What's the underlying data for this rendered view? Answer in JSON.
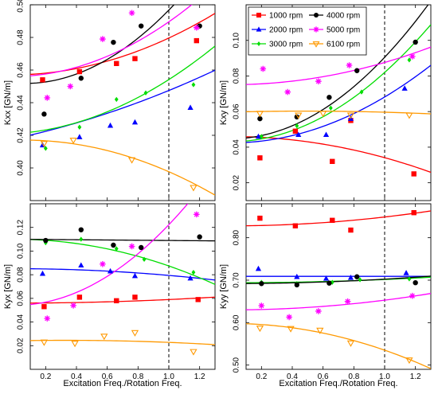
{
  "figure": {
    "xlabel": "Excitation Freq./Rotation Freq.",
    "legend": {
      "placement": "top-left of Kxy panel",
      "entries": [
        {
          "label": "1000 rpm",
          "color": "#ff0000",
          "marker": "square"
        },
        {
          "label": "4000 rpm",
          "color": "#000000",
          "marker": "circle"
        },
        {
          "label": "2000 rpm",
          "color": "#0000ff",
          "marker": "triangle-up"
        },
        {
          "label": "5000 rpm",
          "color": "#ff00ff",
          "marker": "asterisk"
        },
        {
          "label": "3000 rpm",
          "color": "#00dd00",
          "marker": "diamond"
        },
        {
          "label": "6100 rpm",
          "color": "#ff9900",
          "marker": "triangle-down-open"
        }
      ]
    }
  },
  "chart_data": [
    {
      "type": "scatter",
      "panel": "top-left",
      "title": "",
      "xlabel": "",
      "ylabel": "Kxx [GN/m]",
      "xlim": [
        0.1,
        1.3
      ],
      "ylim": [
        0.38,
        0.5
      ],
      "xticks": [
        0.2,
        0.4,
        0.6,
        0.8,
        1.0,
        1.2
      ],
      "yticks": [
        0.4,
        0.42,
        0.44,
        0.46,
        0.48,
        0.5
      ],
      "xtick_labels": [
        "",
        "",
        "",
        "",
        "",
        ""
      ],
      "ytick_labels": [
        "0.40",
        "0.42",
        "0.44",
        "0.46",
        "0.48",
        "0.50"
      ],
      "vline": 1.0,
      "grid": false,
      "series": [
        {
          "name": "1000 rpm",
          "x": [
            0.18,
            0.42,
            0.66,
            0.78,
            1.18
          ],
          "y": [
            0.454,
            0.459,
            0.464,
            0.467,
            0.478
          ],
          "fit": [
            0.457,
            0.00133,
            0.0213
          ]
        },
        {
          "name": "2000 rpm",
          "x": [
            0.18,
            0.42,
            0.62,
            0.78,
            1.14
          ],
          "y": [
            0.414,
            0.419,
            0.426,
            0.428,
            0.437
          ],
          "fit": [
            0.418,
            0.0203,
            0.00917
          ]
        },
        {
          "name": "3000 rpm",
          "x": [
            0.2,
            0.42,
            0.66,
            0.85,
            1.16
          ],
          "y": [
            0.412,
            0.425,
            0.442,
            0.446,
            0.451
          ],
          "fit": [
            0.421,
            0.00607,
            0.0271
          ]
        },
        {
          "name": "4000 rpm",
          "x": [
            0.19,
            0.43,
            0.64,
            0.82,
            1.2
          ],
          "y": [
            0.433,
            0.455,
            0.477,
            0.487,
            0.487
          ],
          "fit": [
            0.452,
            -0.00667,
            0.0514
          ]
        },
        {
          "name": "5000 rpm",
          "x": [
            0.21,
            0.36,
            0.57,
            0.76,
            1.18
          ],
          "y": [
            0.443,
            0.45,
            0.479,
            0.495,
            0.486
          ],
          "fit": [
            0.456,
            0.00146,
            0.0321
          ]
        },
        {
          "name": "6100 rpm",
          "x": [
            0.19,
            0.38,
            0.76,
            1.16
          ],
          "y": [
            0.415,
            0.417,
            0.405,
            0.388
          ],
          "fit": [
            0.417,
            0.00258,
            -0.0219
          ]
        }
      ]
    },
    {
      "type": "scatter",
      "panel": "top-right",
      "title": "",
      "xlabel": "",
      "ylabel": "Kxy [GN/m]",
      "xlim": [
        0.1,
        1.3
      ],
      "ylim": [
        0.01,
        0.12
      ],
      "xticks": [
        0.2,
        0.4,
        0.6,
        0.8,
        1.0,
        1.2
      ],
      "yticks": [
        0.02,
        0.04,
        0.06,
        0.08,
        0.1
      ],
      "xtick_labels": [
        "",
        "",
        "",
        "",
        "",
        ""
      ],
      "ytick_labels": [
        "0.02",
        "0.04",
        "0.06",
        "0.08",
        "0.10"
      ],
      "vline": 1.0,
      "grid": false,
      "series": [
        {
          "name": "1000 rpm",
          "x": [
            0.19,
            0.42,
            0.66,
            0.78,
            1.19
          ],
          "y": [
            0.034,
            0.049,
            0.032,
            0.055,
            0.025
          ],
          "fit": [
            0.046,
            0.0,
            -0.0119
          ]
        },
        {
          "name": "2000 rpm",
          "x": [
            0.18,
            0.44,
            0.62,
            0.78,
            1.13
          ],
          "y": [
            0.046,
            0.047,
            0.047,
            0.056,
            0.073
          ],
          "fit": [
            0.0424,
            0.0,
            0.0258
          ]
        },
        {
          "name": "3000 rpm",
          "x": [
            0.2,
            0.43,
            0.65,
            0.85,
            1.16
          ],
          "y": [
            0.046,
            0.052,
            0.062,
            0.071,
            0.089
          ],
          "fit": [
            0.0431,
            0.0,
            0.0389
          ]
        },
        {
          "name": "4000 rpm",
          "x": [
            0.19,
            0.43,
            0.64,
            0.82,
            1.2
          ],
          "y": [
            0.056,
            0.057,
            0.068,
            0.083,
            0.099
          ],
          "fit": [
            0.0447,
            0.0,
            0.0458
          ]
        },
        {
          "name": "5000 rpm",
          "x": [
            0.21,
            0.37,
            0.57,
            0.77,
            1.18
          ],
          "y": [
            0.084,
            0.071,
            0.077,
            0.086,
            0.091
          ],
          "fit": [
            0.0751,
            0.0,
            0.0125
          ]
        },
        {
          "name": "6100 rpm",
          "x": [
            0.19,
            0.44,
            0.6,
            0.78,
            1.16
          ],
          "y": [
            0.059,
            0.058,
            0.059,
            0.058,
            0.058
          ],
          "fit": [
            0.0597,
            0.00229,
            -0.00234
          ]
        }
      ]
    },
    {
      "type": "scatter",
      "panel": "bottom-left",
      "title": "",
      "xlabel": "Excitation Freq./Rotation Freq.",
      "ylabel": "Kyx [GN/m]",
      "xlim": [
        0.1,
        1.3
      ],
      "ylim": [
        0.0,
        0.14
      ],
      "xticks": [
        0.2,
        0.4,
        0.6,
        0.8,
        1.0,
        1.2
      ],
      "yticks": [
        0.02,
        0.04,
        0.06,
        0.08,
        0.1,
        0.12
      ],
      "xtick_labels": [
        "0.2",
        "0.4",
        "0.6",
        "0.8",
        "1.0",
        "1.2"
      ],
      "ytick_labels": [
        "0.02",
        "0.04",
        "0.06",
        "0.08",
        "0.10",
        "0.12"
      ],
      "vline": 1.0,
      "grid": false,
      "series": [
        {
          "name": "1000 rpm",
          "x": [
            0.19,
            0.42,
            0.66,
            0.78,
            1.19
          ],
          "y": [
            0.053,
            0.061,
            0.058,
            0.061,
            0.059
          ],
          "fit": [
            0.056,
            0.0,
            0.003
          ]
        },
        {
          "name": "2000 rpm",
          "x": [
            0.18,
            0.43,
            0.62,
            0.78,
            1.14
          ],
          "y": [
            0.081,
            0.088,
            0.083,
            0.079,
            0.077
          ],
          "fit": [
            0.0851,
            0.0,
            -0.00568
          ]
        },
        {
          "name": "3000 rpm",
          "x": [
            0.2,
            0.43,
            0.66,
            0.84,
            1.16
          ],
          "y": [
            0.107,
            0.11,
            0.102,
            0.093,
            0.082
          ],
          "fit": [
            0.11,
            0.0,
            -0.0226
          ]
        },
        {
          "name": "4000 rpm",
          "x": [
            0.2,
            0.43,
            0.64,
            0.82,
            1.2
          ],
          "y": [
            0.109,
            0.118,
            0.105,
            0.103,
            0.112
          ],
          "fit": [
            0.11,
            -0.00105,
            0.0
          ]
        },
        {
          "name": "5000 rpm",
          "x": [
            0.21,
            0.38,
            0.57,
            0.76,
            1.18
          ],
          "y": [
            0.043,
            0.054,
            0.089,
            0.104,
            0.131
          ],
          "fit": [
            0.0541,
            0.0,
            0.0682
          ]
        },
        {
          "name": "6100 rpm",
          "x": [
            0.19,
            0.39,
            0.58,
            0.78,
            1.16
          ],
          "y": [
            0.023,
            0.022,
            0.028,
            0.031,
            0.015
          ],
          "fit": [
            0.0241,
            0.0026,
            -0.00391
          ]
        }
      ]
    },
    {
      "type": "scatter",
      "panel": "bottom-right",
      "title": "",
      "xlabel": "Excitation Freq./Rotation Freq.",
      "ylabel": "Kyy [GN/m]",
      "xlim": [
        0.1,
        1.3
      ],
      "ylim": [
        0.49,
        0.88
      ],
      "xticks": [
        0.2,
        0.4,
        0.6,
        0.8,
        1.0,
        1.2
      ],
      "yticks": [
        0.5,
        0.6,
        0.7,
        0.8
      ],
      "xtick_labels": [
        "0.2",
        "0.4",
        "0.6",
        "0.8",
        "1.0",
        "1.2"
      ],
      "ytick_labels": [
        "0.50",
        "0.60",
        "0.70",
        "0.80"
      ],
      "vline": 1.0,
      "grid": false,
      "series": [
        {
          "name": "1000 rpm",
          "x": [
            0.19,
            0.42,
            0.66,
            0.78,
            1.19
          ],
          "y": [
            0.846,
            0.828,
            0.841,
            0.818,
            0.859
          ],
          "fit": [
            0.828,
            0.0,
            0.0208
          ]
        },
        {
          "name": "2000 rpm",
          "x": [
            0.18,
            0.43,
            0.62,
            0.78,
            1.14
          ],
          "y": [
            0.727,
            0.708,
            0.704,
            0.706,
            0.717
          ],
          "fit": [
            0.709,
            0.0,
            0.0
          ]
        },
        {
          "name": "3000 rpm",
          "x": [
            0.2,
            0.43,
            0.66,
            0.84,
            1.16
          ],
          "y": [
            0.695,
            0.692,
            0.695,
            0.701,
            0.703
          ],
          "fit": [
            0.694,
            0.0,
            0.00764
          ]
        },
        {
          "name": "4000 rpm",
          "x": [
            0.2,
            0.43,
            0.64,
            0.82,
            1.2
          ],
          "y": [
            0.692,
            0.689,
            0.693,
            0.708,
            0.694
          ],
          "fit": [
            0.692,
            0.0,
            0.0104
          ]
        },
        {
          "name": "5000 rpm",
          "x": [
            0.2,
            0.38,
            0.57,
            0.76,
            1.18
          ],
          "y": [
            0.64,
            0.613,
            0.627,
            0.65,
            0.663
          ],
          "fit": [
            0.63,
            0.0,
            0.0229
          ]
        },
        {
          "name": "6100 rpm",
          "x": [
            0.19,
            0.39,
            0.58,
            0.78,
            1.16
          ],
          "y": [
            0.587,
            0.586,
            0.582,
            0.552,
            0.512
          ],
          "fit": [
            0.598,
            0.0,
            -0.0629
          ]
        }
      ]
    }
  ]
}
